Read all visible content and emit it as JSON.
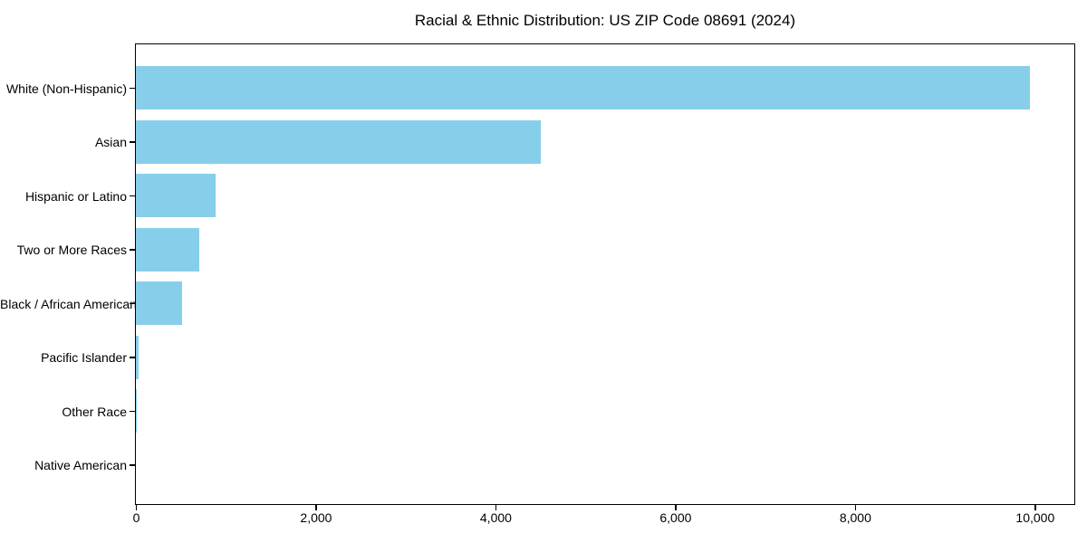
{
  "title": "Racial & Ethnic Distribution: US ZIP Code 08691 (2024)",
  "colors": {
    "bar": "#87CEEB",
    "axis": "#000000",
    "background": "#FFFFFF",
    "text": "#000000"
  },
  "chart_data": {
    "type": "bar",
    "orientation": "horizontal",
    "title": "Racial & Ethnic Distribution: US ZIP Code 08691 (2024)",
    "categories": [
      "White (Non-Hispanic)",
      "Asian",
      "Hispanic or Latino",
      "Two or More Races",
      "Black / African American",
      "Pacific Islander",
      "Other Race",
      "Native American"
    ],
    "values": [
      9940,
      4500,
      890,
      700,
      510,
      30,
      15,
      0
    ],
    "bar_color": "#87CEEB",
    "xlabel": "",
    "ylabel": "",
    "xlim": [
      0,
      10430
    ],
    "x_ticks": [
      0,
      2000,
      4000,
      6000,
      8000,
      10000
    ],
    "x_tick_labels": [
      "0",
      "2,000",
      "4,000",
      "6,000",
      "8,000",
      "10,000"
    ],
    "grid": false,
    "legend": null
  }
}
